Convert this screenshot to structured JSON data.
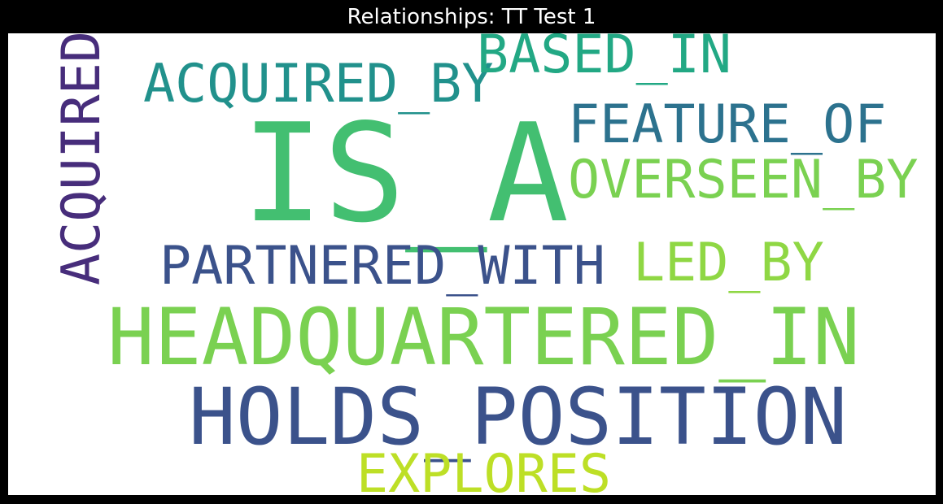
{
  "title": "Relationships: TT Test 1",
  "words": [
    {
      "key": "is_a",
      "text": "IS_A",
      "color": "#43BF71"
    },
    {
      "key": "headquartered_in",
      "text": "HEADQUARTERED_IN",
      "color": "#7AD151"
    },
    {
      "key": "holds_position",
      "text": "HOLDS_POSITION",
      "color": "#3B528B"
    },
    {
      "key": "acquired_by",
      "text": "ACQUIRED_BY",
      "color": "#21918C"
    },
    {
      "key": "based_in",
      "text": "BASED_IN",
      "color": "#22A884"
    },
    {
      "key": "feature_of",
      "text": "FEATURE_OF",
      "color": "#2C728E"
    },
    {
      "key": "overseen_by",
      "text": "OVERSEEN_BY",
      "color": "#7AD151"
    },
    {
      "key": "partnered_with",
      "text": "PARTNERED_WITH",
      "color": "#3B528B"
    },
    {
      "key": "led_by",
      "text": "LED_BY",
      "color": "#8FD744"
    },
    {
      "key": "explores",
      "text": "EXPLORES",
      "color": "#BDDF26"
    },
    {
      "key": "acquired",
      "text": "ACQUIRED",
      "color": "#472D7B",
      "orientation": "vertical"
    }
  ]
}
